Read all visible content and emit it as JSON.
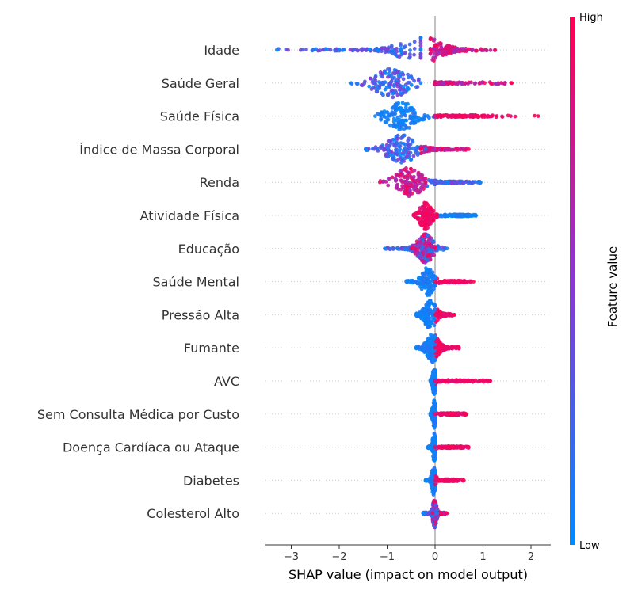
{
  "chart_data": {
    "type": "scatter",
    "subtype": "beeswarm",
    "xlabel": "SHAP value (impact on model output)",
    "xlim": [
      -3.5,
      2.45
    ],
    "xticks": [
      {
        "value": -3,
        "label": "−3"
      },
      {
        "value": -2,
        "label": "−2"
      },
      {
        "value": -1,
        "label": "−1"
      },
      {
        "value": 0,
        "label": "0"
      },
      {
        "value": 1,
        "label": "1"
      },
      {
        "value": 2,
        "label": "2"
      }
    ],
    "features": [
      {
        "name": "Idade",
        "low_range": [
          -3.3,
          -0.3
        ],
        "high_range": [
          -0.1,
          1.25
        ],
        "low_center": -1.0,
        "high_center": 0.25,
        "peak": -0.3,
        "spread": 0.5,
        "mixed": true
      },
      {
        "name": "Saúde Geral",
        "low_range": [
          -1.75,
          -0.3
        ],
        "high_range": [
          0.0,
          1.6
        ],
        "low_center": -0.9,
        "high_center": 0.15,
        "peak": -0.9,
        "spread": 0.45,
        "mixed": true
      },
      {
        "name": "Saúde Física",
        "low_range": [
          -1.25,
          0.0
        ],
        "high_range": [
          0.0,
          2.15
        ],
        "low_center": -0.7,
        "high_center": 0.6,
        "peak": -0.7,
        "spread": 0.35,
        "mixed": false
      },
      {
        "name": "Índice de Massa Corporal",
        "low_range": [
          -1.45,
          -0.2
        ],
        "high_range": [
          -0.3,
          0.7
        ],
        "low_center": -0.7,
        "high_center": 0.0,
        "peak": -0.7,
        "spread": 0.35,
        "mixed": true
      },
      {
        "name": "Renda",
        "low_range": [
          -0.2,
          0.95
        ],
        "high_range": [
          -1.15,
          -0.2
        ],
        "low_center": 0.3,
        "high_center": -0.55,
        "peak": -0.55,
        "spread": 0.35,
        "mixed": true
      },
      {
        "name": "Atividade Física",
        "low_range": [
          0.1,
          0.85
        ],
        "high_range": [
          -0.45,
          0.05
        ],
        "low_center": 0.5,
        "high_center": -0.2,
        "peak": -0.2,
        "spread": 0.15,
        "mixed": false
      },
      {
        "name": "Educação",
        "low_range": [
          -1.05,
          0.25
        ],
        "high_range": [
          -0.5,
          0.0
        ],
        "low_center": -0.35,
        "high_center": -0.2,
        "peak": -0.2,
        "spread": 0.2,
        "mixed": true
      },
      {
        "name": "Saúde Mental",
        "low_range": [
          -0.6,
          0.0
        ],
        "high_range": [
          0.0,
          0.8
        ],
        "low_center": -0.15,
        "high_center": 0.4,
        "peak": -0.15,
        "spread": 0.15,
        "mixed": false
      },
      {
        "name": "Pressão Alta",
        "low_range": [
          -0.4,
          0.0
        ],
        "high_range": [
          0.0,
          0.4
        ],
        "low_center": -0.15,
        "high_center": 0.15,
        "peak": -0.1,
        "spread": 0.15,
        "mixed": false
      },
      {
        "name": "Fumante",
        "low_range": [
          -0.4,
          0.0
        ],
        "high_range": [
          0.0,
          0.5
        ],
        "low_center": -0.1,
        "high_center": 0.15,
        "peak": -0.05,
        "spread": 0.15,
        "mixed": false
      },
      {
        "name": "AVC",
        "low_range": [
          -0.1,
          0.0
        ],
        "high_range": [
          0.0,
          1.15
        ],
        "low_center": -0.02,
        "high_center": 0.5,
        "peak": -0.02,
        "spread": 0.04,
        "mixed": false
      },
      {
        "name": "Sem Consulta Médica por Custo",
        "low_range": [
          -0.1,
          0.0
        ],
        "high_range": [
          0.0,
          0.65
        ],
        "low_center": -0.02,
        "high_center": 0.3,
        "peak": -0.02,
        "spread": 0.04,
        "mixed": false
      },
      {
        "name": "Doença Cardíaca ou Ataque",
        "low_range": [
          -0.15,
          0.0
        ],
        "high_range": [
          0.0,
          0.7
        ],
        "low_center": -0.02,
        "high_center": 0.3,
        "peak": -0.02,
        "spread": 0.04,
        "mixed": false
      },
      {
        "name": "Diabetes",
        "low_range": [
          -0.2,
          0.0
        ],
        "high_range": [
          0.0,
          0.6
        ],
        "low_center": -0.03,
        "high_center": 0.25,
        "peak": -0.03,
        "spread": 0.05,
        "mixed": false
      },
      {
        "name": "Colesterol Alto",
        "low_range": [
          -0.25,
          0.05
        ],
        "high_range": [
          -0.05,
          0.25
        ],
        "low_center": -0.02,
        "high_center": 0.05,
        "peak": -0.01,
        "spread": 0.05,
        "mixed": true
      }
    ],
    "colorbar": {
      "title": "Feature value",
      "high_label": "High",
      "low_label": "Low",
      "high_color": "#ff0052",
      "mid_color": "#8b37d1",
      "low_color": "#008afb"
    },
    "zero_line_color": "#999999",
    "grid": false
  }
}
